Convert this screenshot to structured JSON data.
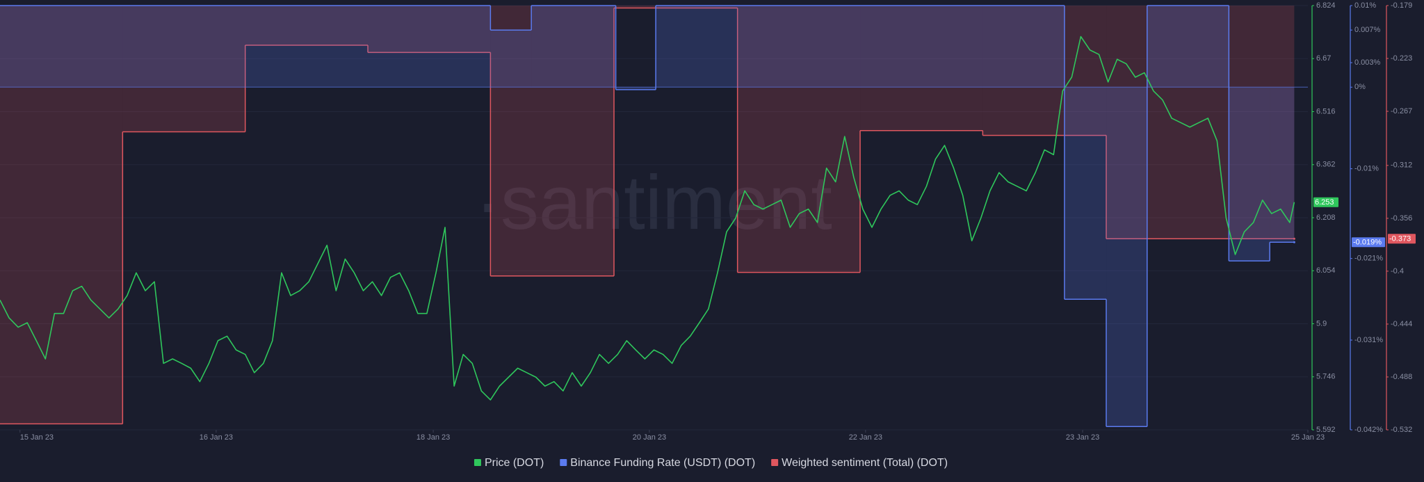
{
  "chart_data": {
    "type": "line",
    "watermark": "·santiment",
    "grid": true,
    "xlim": [
      0,
      144
    ],
    "xticks": [
      {
        "value": 2.2,
        "label": "15 Jan 23"
      },
      {
        "value": 23.8,
        "label": "16 Jan 23"
      },
      {
        "value": 47.7,
        "label": "18 Jan 23"
      },
      {
        "value": 71.5,
        "label": "20 Jan 23"
      },
      {
        "value": 95.3,
        "label": "22 Jan 23"
      },
      {
        "value": 119.2,
        "label": "23 Jan 23"
      },
      {
        "value": 144,
        "label": "25 Jan 23"
      }
    ],
    "ylim": [
      5.592,
      6.824
    ],
    "yticks": [
      5.592,
      5.746,
      5.9,
      6.054,
      6.208,
      6.362,
      6.516,
      6.67,
      6.824
    ],
    "y2lim": [
      -0.042,
      0.01
    ],
    "y2ticks": [
      {
        "value": -0.042,
        "label": "-0.042%"
      },
      {
        "value": -0.031,
        "label": "-0.031%"
      },
      {
        "value": -0.021,
        "label": "-0.021%"
      },
      {
        "value": -0.01,
        "label": "-0.01%"
      },
      {
        "value": 0,
        "label": "0%"
      },
      {
        "value": 0.003,
        "label": "0.003%"
      },
      {
        "value": 0.007,
        "label": "0.007%"
      },
      {
        "value": 0.01,
        "label": "0.01%"
      }
    ],
    "y3lim": [
      -0.532,
      -0.179
    ],
    "y3ticks": [
      -0.532,
      -0.488,
      -0.444,
      -0.4,
      -0.356,
      -0.312,
      -0.267,
      -0.223,
      -0.179
    ],
    "series": [
      {
        "name": "Price (DOT)",
        "color": "#2fc75c",
        "axis": "y",
        "style": "line",
        "x": [
          0,
          1,
          2,
          3,
          4,
          5,
          6,
          7,
          8,
          9,
          10,
          11,
          12,
          13,
          14,
          15,
          16,
          17,
          18,
          19,
          20,
          21,
          22,
          23,
          24,
          25,
          26,
          27,
          28,
          29,
          30,
          31,
          32,
          33,
          34,
          35,
          36,
          37,
          38,
          39,
          40,
          41,
          42,
          43,
          44,
          45,
          46,
          47,
          48,
          49,
          50,
          51,
          52,
          53,
          54,
          55,
          56,
          57,
          58,
          59,
          60,
          61,
          62,
          63,
          64,
          65,
          66,
          67,
          68,
          69,
          70,
          71,
          72,
          73,
          74,
          75,
          76,
          77,
          78,
          79,
          80,
          81,
          82,
          83,
          84,
          85,
          86,
          87,
          88,
          89,
          90,
          91,
          92,
          93,
          94,
          95,
          96,
          97,
          98,
          99,
          100,
          101,
          102,
          103,
          104,
          105,
          106,
          107,
          108,
          109,
          110,
          111,
          112,
          113,
          114,
          115,
          116,
          117,
          118,
          119,
          120,
          121,
          122,
          123,
          124,
          125,
          126,
          127,
          128,
          129,
          130,
          131,
          132,
          133,
          134,
          135,
          136,
          137,
          138,
          139,
          140,
          141,
          142,
          142.5
        ],
        "values": [
          5.969,
          5.917,
          5.89,
          5.903,
          5.851,
          5.798,
          5.93,
          5.93,
          5.996,
          6.009,
          5.969,
          5.943,
          5.917,
          5.943,
          5.982,
          6.048,
          5.996,
          6.022,
          5.785,
          5.798,
          5.785,
          5.771,
          5.732,
          5.785,
          5.851,
          5.864,
          5.824,
          5.811,
          5.758,
          5.785,
          5.851,
          6.048,
          5.982,
          5.996,
          6.022,
          6.075,
          6.128,
          5.996,
          6.088,
          6.048,
          5.996,
          6.022,
          5.982,
          6.035,
          6.048,
          5.996,
          5.93,
          5.93,
          6.048,
          6.18,
          5.719,
          5.811,
          5.785,
          5.705,
          5.679,
          5.719,
          5.745,
          5.771,
          5.758,
          5.745,
          5.719,
          5.732,
          5.705,
          5.758,
          5.719,
          5.758,
          5.811,
          5.785,
          5.811,
          5.851,
          5.824,
          5.798,
          5.824,
          5.811,
          5.785,
          5.837,
          5.864,
          5.903,
          5.943,
          6.048,
          6.167,
          6.207,
          6.286,
          6.246,
          6.233,
          6.246,
          6.259,
          6.18,
          6.22,
          6.233,
          6.194,
          6.352,
          6.312,
          6.444,
          6.325,
          6.233,
          6.18,
          6.233,
          6.273,
          6.286,
          6.259,
          6.246,
          6.299,
          6.378,
          6.418,
          6.352,
          6.273,
          6.141,
          6.207,
          6.286,
          6.339,
          6.312,
          6.299,
          6.286,
          6.339,
          6.405,
          6.391,
          6.576,
          6.616,
          6.734,
          6.695,
          6.682,
          6.602,
          6.668,
          6.655,
          6.616,
          6.629,
          6.576,
          6.55,
          6.497,
          6.484,
          6.471,
          6.484,
          6.497,
          6.431,
          6.207,
          6.101,
          6.167,
          6.194,
          6.259,
          6.22,
          6.233,
          6.194,
          6.253
        ]
      },
      {
        "name": "Binance Funding Rate (USDT) (DOT)",
        "color": "#5b7bef",
        "axis": "y2",
        "style": "step",
        "x": [
          0,
          54,
          58.5,
          67.8,
          72.2,
          117.2,
          121.8,
          126.3,
          135.3,
          139.8,
          142.5
        ],
        "values": [
          0.01,
          0.007,
          0.01,
          -0.0003,
          0.01,
          -0.026,
          -0.0416,
          0.01,
          -0.0213,
          -0.019,
          -0.019
        ],
        "value_labels": [
          null,
          null,
          null,
          null,
          null,
          null,
          null,
          null,
          null,
          null,
          "-0.019%"
        ]
      },
      {
        "name": "Weighted sentiment (Total) (DOT)",
        "color": "#e0575f",
        "axis": "y3",
        "style": "step",
        "x": [
          0,
          13.5,
          27,
          40.5,
          54,
          67.6,
          81.2,
          94.7,
          108.2,
          121.8,
          142.5
        ],
        "values": [
          -0.527,
          -0.284,
          -0.212,
          -0.218,
          -0.404,
          -0.181,
          -0.401,
          -0.283,
          -0.287,
          -0.373,
          -0.373
        ]
      }
    ]
  }
}
